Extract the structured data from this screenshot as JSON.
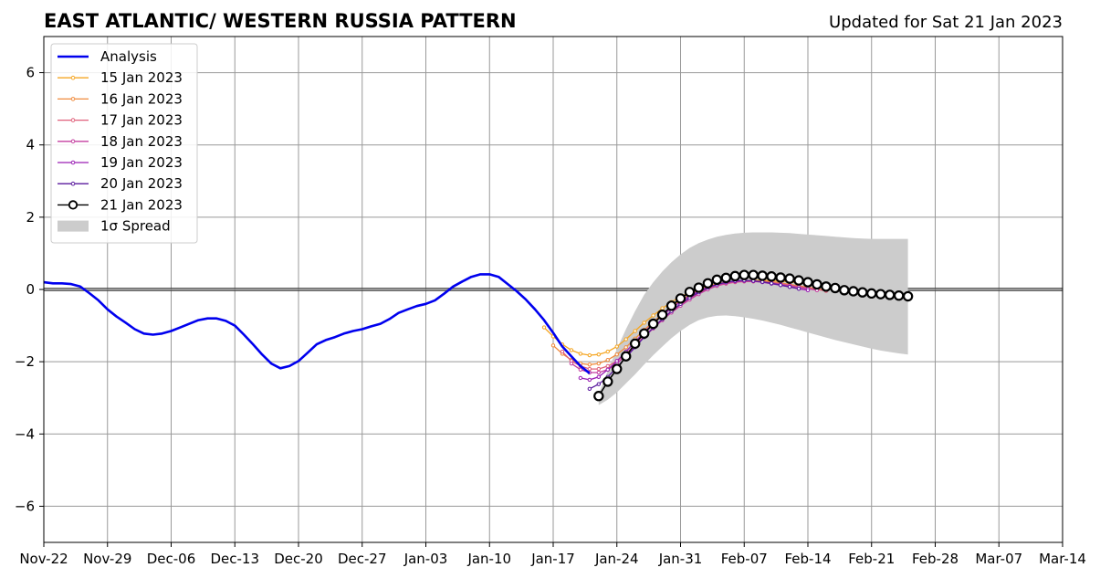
{
  "chart_data": {
    "type": "line",
    "title": "EAST ATLANTIC/ WESTERN RUSSIA PATTERN",
    "subtitle": "Updated for Sat 21 Jan 2023",
    "xlabel": "",
    "ylabel": "",
    "x_ticks": [
      "Nov-22",
      "Nov-29",
      "Dec-06",
      "Dec-13",
      "Dec-20",
      "Dec-27",
      "Jan-03",
      "Jan-10",
      "Jan-17",
      "Jan-24",
      "Jan-31",
      "Feb-07",
      "Feb-14",
      "Feb-21",
      "Feb-28",
      "Mar-07",
      "Mar-14"
    ],
    "y_ticks": [
      "6",
      "4",
      "2",
      "0",
      "−2",
      "−4",
      "−6"
    ],
    "ylim": [
      -7,
      7
    ],
    "xlim": [
      "2022-11-22",
      "2023-03-14"
    ],
    "grid": true,
    "zero_line": true,
    "legend_position": "top-left",
    "colors": {
      "analysis": "#0000ee",
      "15 Jan 2023": "#f5a623",
      "16 Jan 2023": "#f08a3c",
      "17 Jan 2023": "#e0607a",
      "18 Jan 2023": "#c43fa0",
      "19 Jan 2023": "#9a1fb5",
      "20 Jan 2023": "#5a1a9e",
      "21 Jan 2023": "#000000",
      "spread": "#cccccc",
      "grid": "#999999"
    },
    "legend": [
      "Analysis",
      "15 Jan 2023",
      "16 Jan 2023",
      "17 Jan 2023",
      "18 Jan 2023",
      "19 Jan 2023",
      "20 Jan 2023",
      "21 Jan 2023",
      "1σ Spread"
    ],
    "analysis": {
      "x": [
        "2022-11-22",
        "2022-11-23",
        "2022-11-24",
        "2022-11-25",
        "2022-11-26",
        "2022-11-27",
        "2022-11-28",
        "2022-11-29",
        "2022-11-30",
        "2022-12-01",
        "2022-12-02",
        "2022-12-03",
        "2022-12-04",
        "2022-12-05",
        "2022-12-06",
        "2022-12-07",
        "2022-12-08",
        "2022-12-09",
        "2022-12-10",
        "2022-12-11",
        "2022-12-12",
        "2022-12-13",
        "2022-12-14",
        "2022-12-15",
        "2022-12-16",
        "2022-12-17",
        "2022-12-18",
        "2022-12-19",
        "2022-12-20",
        "2022-12-21",
        "2022-12-22",
        "2022-12-23",
        "2022-12-24",
        "2022-12-25",
        "2022-12-26",
        "2022-12-27",
        "2022-12-28",
        "2022-12-29",
        "2022-12-30",
        "2022-12-31",
        "2023-01-01",
        "2023-01-02",
        "2023-01-03",
        "2023-01-04",
        "2023-01-05",
        "2023-01-06",
        "2023-01-07",
        "2023-01-08",
        "2023-01-09",
        "2023-01-10",
        "2023-01-11",
        "2023-01-12",
        "2023-01-13",
        "2023-01-14",
        "2023-01-15",
        "2023-01-16",
        "2023-01-17",
        "2023-01-18",
        "2023-01-19",
        "2023-01-20",
        "2023-01-21"
      ],
      "y": [
        0.2,
        0.17,
        0.17,
        0.15,
        0.08,
        -0.1,
        -0.3,
        -0.55,
        -0.75,
        -0.92,
        -1.1,
        -1.22,
        -1.25,
        -1.22,
        -1.15,
        -1.05,
        -0.95,
        -0.85,
        -0.8,
        -0.8,
        -0.87,
        -1.0,
        -1.25,
        -1.52,
        -1.8,
        -2.05,
        -2.18,
        -2.12,
        -1.98,
        -1.75,
        -1.52,
        -1.4,
        -1.32,
        -1.22,
        -1.15,
        -1.1,
        -1.02,
        -0.95,
        -0.82,
        -0.65,
        -0.55,
        -0.46,
        -0.4,
        -0.3,
        -0.12,
        0.08,
        0.22,
        0.35,
        0.42,
        0.42,
        0.35,
        0.15,
        -0.05,
        -0.28,
        -0.55,
        -0.85,
        -1.2,
        -1.58,
        -1.85,
        -2.12,
        -2.32
      ]
    },
    "forecasts": [
      {
        "name": "15 Jan 2023",
        "start": "2023-01-16",
        "y": [
          -1.05,
          -1.3,
          -1.52,
          -1.68,
          -1.78,
          -1.82,
          -1.8,
          -1.72,
          -1.58,
          -1.38,
          -1.15,
          -0.92,
          -0.72,
          -0.52,
          -0.35,
          -0.2,
          -0.08,
          0.02,
          0.1,
          0.16,
          0.2,
          0.22,
          0.24,
          0.25,
          0.25,
          0.24,
          0.23,
          0.21,
          0.18,
          0.15,
          0.12,
          0.08,
          0.03
        ]
      },
      {
        "name": "16 Jan 2023",
        "start": "2023-01-17",
        "y": [
          -1.55,
          -1.78,
          -1.95,
          -2.05,
          -2.08,
          -2.05,
          -1.95,
          -1.8,
          -1.6,
          -1.36,
          -1.12,
          -0.9,
          -0.68,
          -0.48,
          -0.3,
          -0.15,
          -0.02,
          0.08,
          0.15,
          0.2,
          0.22,
          0.24,
          0.24,
          0.23,
          0.21,
          0.18,
          0.14,
          0.1,
          0.06,
          0.02,
          -0.02
        ]
      },
      {
        "name": "17 Jan 2023",
        "start": "2023-01-18",
        "y": [
          -1.72,
          -1.98,
          -2.12,
          -2.2,
          -2.2,
          -2.12,
          -1.98,
          -1.78,
          -1.55,
          -1.3,
          -1.05,
          -0.82,
          -0.62,
          -0.42,
          -0.25,
          -0.1,
          0.02,
          0.1,
          0.16,
          0.2,
          0.22,
          0.22,
          0.21,
          0.19,
          0.16,
          0.12,
          0.08,
          0.04,
          0.0,
          -0.04
        ]
      },
      {
        "name": "18 Jan 2023",
        "start": "2023-01-19",
        "y": [
          -2.05,
          -2.22,
          -2.3,
          -2.3,
          -2.22,
          -2.05,
          -1.82,
          -1.58,
          -1.32,
          -1.08,
          -0.85,
          -0.64,
          -0.45,
          -0.28,
          -0.13,
          0.0,
          0.1,
          0.17,
          0.21,
          0.23,
          0.23,
          0.21,
          0.18,
          0.14,
          0.1,
          0.06,
          0.02,
          -0.02
        ]
      },
      {
        "name": "19 Jan 2023",
        "start": "2023-01-20",
        "y": [
          -2.45,
          -2.5,
          -2.42,
          -2.22,
          -1.98,
          -1.72,
          -1.45,
          -1.18,
          -0.94,
          -0.72,
          -0.52,
          -0.34,
          -0.18,
          -0.05,
          0.06,
          0.14,
          0.2,
          0.23,
          0.24,
          0.23,
          0.2,
          0.16,
          0.12,
          0.07,
          0.02,
          -0.02
        ]
      },
      {
        "name": "20 Jan 2023",
        "start": "2023-01-21",
        "y": [
          -2.75,
          -2.62,
          -2.42,
          -2.15,
          -1.88,
          -1.6,
          -1.32,
          -1.06,
          -0.82,
          -0.6,
          -0.4,
          -0.23,
          -0.08,
          0.05,
          0.14,
          0.2,
          0.24,
          0.25,
          0.24,
          0.21,
          0.17,
          0.12,
          0.07,
          0.02
        ]
      },
      {
        "name": "21 Jan 2023",
        "start": "2023-01-22",
        "y": [
          -2.95,
          -2.55,
          -2.2,
          -1.85,
          -1.5,
          -1.22,
          -0.95,
          -0.7,
          -0.45,
          -0.25,
          -0.07,
          0.05,
          0.17,
          0.27,
          0.32,
          0.37,
          0.4,
          0.4,
          0.38,
          0.36,
          0.33,
          0.3,
          0.25,
          0.2,
          0.14,
          0.08,
          0.04,
          -0.02,
          -0.05,
          -0.08,
          -0.11,
          -0.13,
          -0.15,
          -0.17,
          -0.19
        ]
      }
    ],
    "spread": {
      "start": "2023-01-22",
      "upper": [
        -2.9,
        -2.25,
        -1.65,
        -1.1,
        -0.6,
        -0.15,
        0.2,
        0.5,
        0.75,
        0.97,
        1.15,
        1.28,
        1.38,
        1.46,
        1.51,
        1.55,
        1.57,
        1.58,
        1.58,
        1.58,
        1.57,
        1.56,
        1.54,
        1.52,
        1.5,
        1.48,
        1.46,
        1.44,
        1.42,
        1.41,
        1.4,
        1.4,
        1.4,
        1.4,
        1.4
      ],
      "lower": [
        -3.2,
        -3.05,
        -2.85,
        -2.6,
        -2.35,
        -2.08,
        -1.82,
        -1.58,
        -1.35,
        -1.15,
        -0.98,
        -0.85,
        -0.77,
        -0.73,
        -0.72,
        -0.74,
        -0.77,
        -0.81,
        -0.86,
        -0.92,
        -0.98,
        -1.05,
        -1.12,
        -1.19,
        -1.26,
        -1.33,
        -1.4,
        -1.46,
        -1.52,
        -1.58,
        -1.64,
        -1.69,
        -1.73,
        -1.77,
        -1.8
      ]
    }
  }
}
